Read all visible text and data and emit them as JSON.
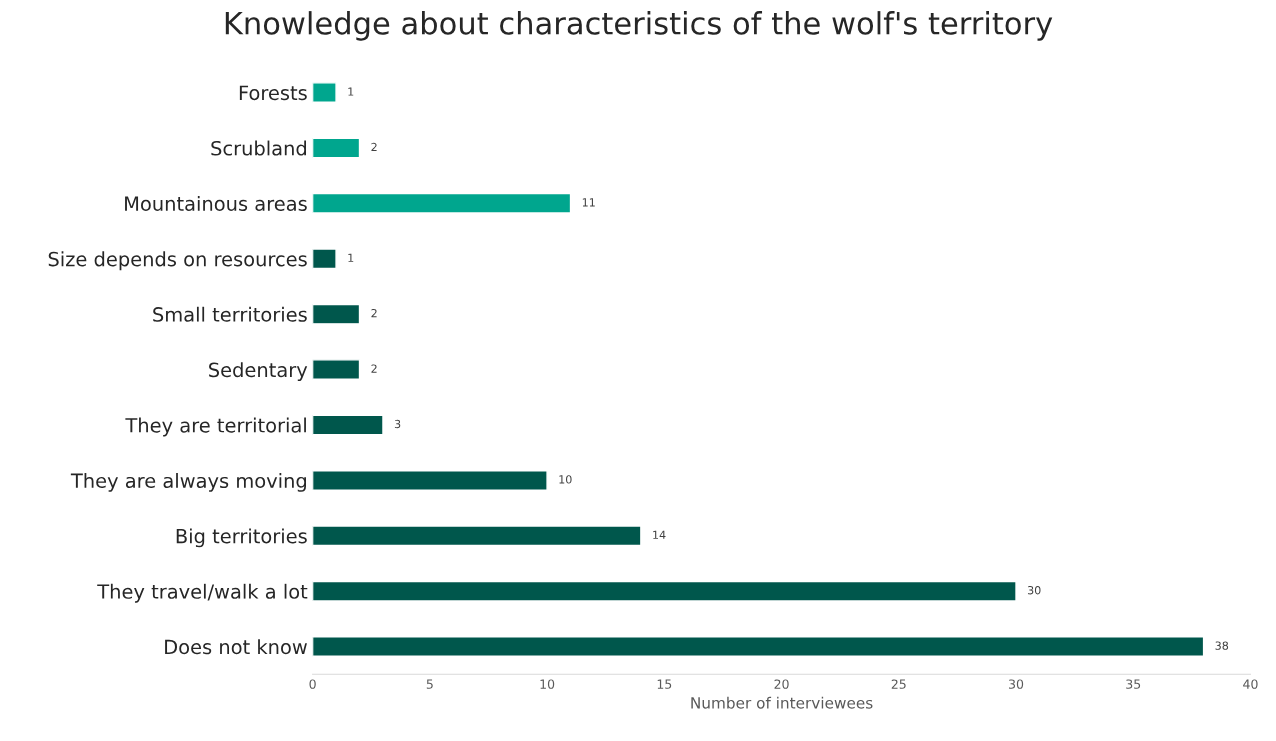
{
  "chart_data": {
    "type": "bar",
    "orientation": "horizontal",
    "title": "Knowledge about characteristics of the wolf's territory",
    "xlabel": "Number of interviewees",
    "categories": [
      "Forests",
      "Scrubland",
      "Mountainous areas",
      "Size depends on resources",
      "Small territories",
      "Sedentary",
      "They are territorial",
      "They are always moving",
      "Big territories",
      "They travel/walk a lot",
      "Does not know"
    ],
    "values": [
      1,
      2,
      11,
      1,
      2,
      2,
      3,
      10,
      14,
      30,
      38
    ],
    "colors": [
      "#00a68e",
      "#00a68e",
      "#00a68e",
      "#00574c",
      "#00574c",
      "#00574c",
      "#00574c",
      "#00574c",
      "#00574c",
      "#00574c",
      "#00574c"
    ],
    "xlim": [
      0,
      40
    ],
    "xticks": [
      0,
      5,
      10,
      15,
      20,
      25,
      30,
      35,
      40
    ],
    "data_labels": true,
    "grid": false,
    "legend": false
  }
}
